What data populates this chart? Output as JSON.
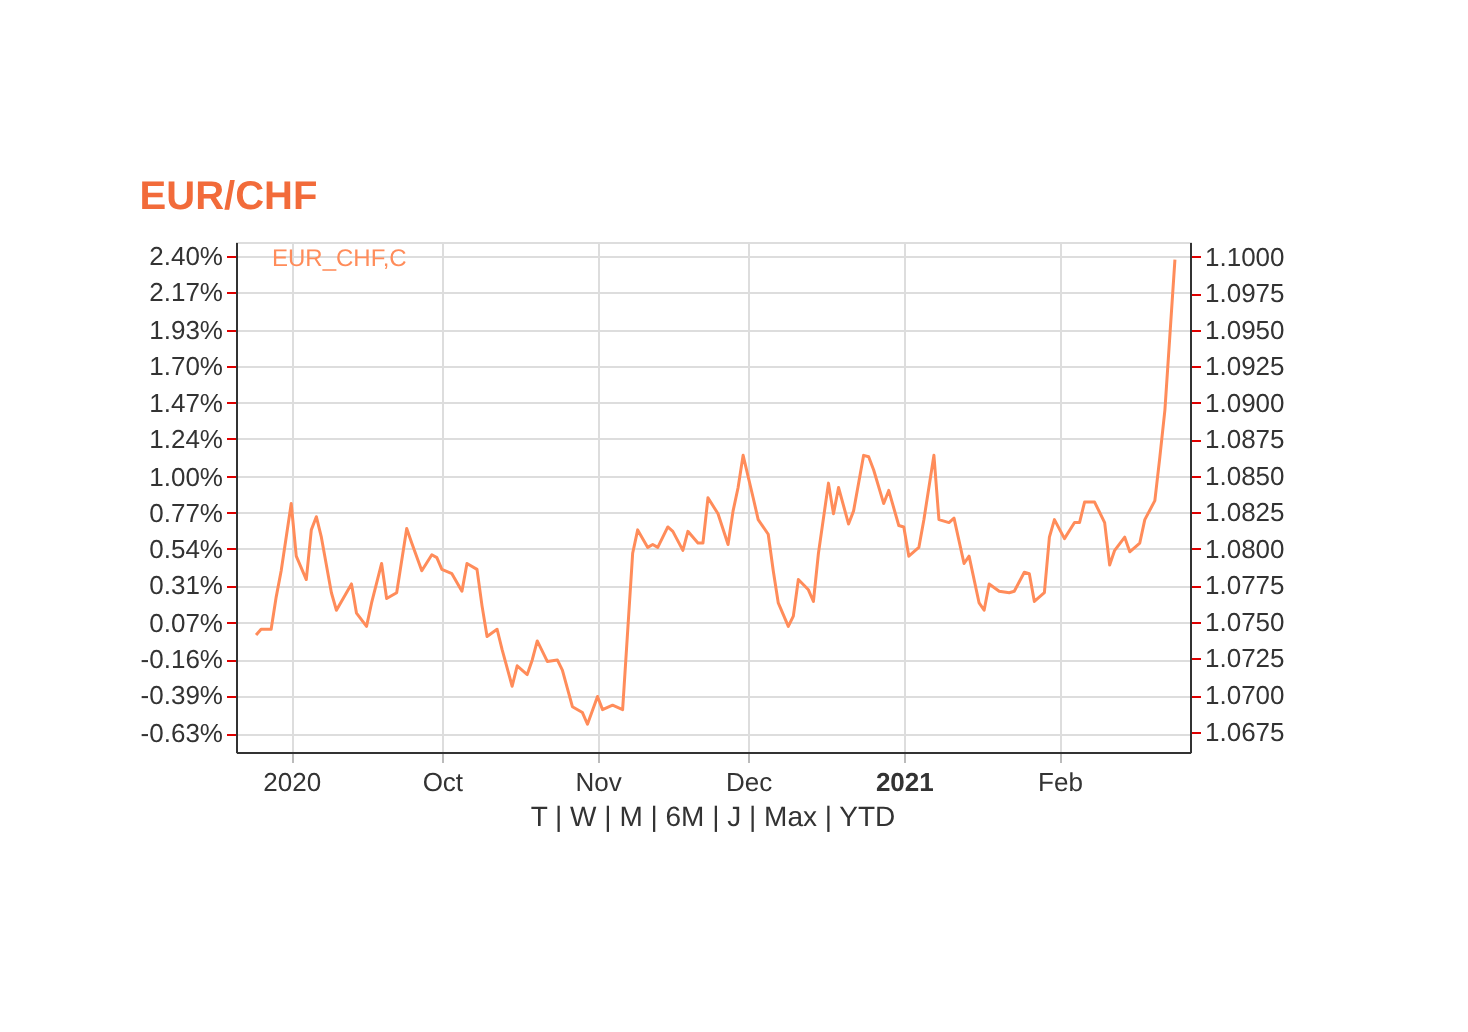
{
  "chart_data": {
    "type": "line",
    "title": "EUR/CHF",
    "legend": "top left",
    "grid": true,
    "annotations": [
      "T | W | M | 6M | J | Max | YTD"
    ],
    "x": [
      "2020-08-25",
      "2020-08-26",
      "2020-08-28",
      "2020-08-29",
      "2020-08-30",
      "2020-09-01",
      "2020-09-02",
      "2020-09-04",
      "2020-09-05",
      "2020-09-06",
      "2020-09-07",
      "2020-09-09",
      "2020-09-10",
      "2020-09-12",
      "2020-09-13",
      "2020-09-14",
      "2020-09-16",
      "2020-09-17",
      "2020-09-19",
      "2020-09-20",
      "2020-09-22",
      "2020-09-24",
      "2020-09-25",
      "2020-09-27",
      "2020-09-29",
      "2020-09-30",
      "2020-10-01",
      "2020-10-03",
      "2020-10-05",
      "2020-10-06",
      "2020-10-08",
      "2020-10-09",
      "2020-10-10",
      "2020-10-12",
      "2020-10-13",
      "2020-10-15",
      "2020-10-16",
      "2020-10-18",
      "2020-10-19",
      "2020-10-20",
      "2020-10-22",
      "2020-10-24",
      "2020-10-25",
      "2020-10-27",
      "2020-10-29",
      "2020-10-30",
      "2020-11-01",
      "2020-11-02",
      "2020-11-04",
      "2020-11-06",
      "2020-11-08",
      "2020-11-09",
      "2020-11-11",
      "2020-11-12",
      "2020-11-13",
      "2020-11-15",
      "2020-11-16",
      "2020-11-18",
      "2020-11-19",
      "2020-11-21",
      "2020-11-22",
      "2020-11-23",
      "2020-11-25",
      "2020-11-27",
      "2020-11-28",
      "2020-11-29",
      "2020-11-30",
      "2020-12-02",
      "2020-12-03",
      "2020-12-05",
      "2020-12-06",
      "2020-12-07",
      "2020-12-09",
      "2020-12-10",
      "2020-12-11",
      "2020-12-13",
      "2020-12-14",
      "2020-12-15",
      "2020-12-17",
      "2020-12-18",
      "2020-12-19",
      "2020-12-21",
      "2020-12-22",
      "2020-12-24",
      "2020-12-25",
      "2020-12-26",
      "2020-12-28",
      "2020-12-29",
      "2020-12-31",
      "2021-01-01",
      "2021-01-02",
      "2021-01-04",
      "2021-01-05",
      "2021-01-07",
      "2021-01-08",
      "2021-01-10",
      "2021-01-11",
      "2021-01-13",
      "2021-01-14",
      "2021-01-16",
      "2021-01-17",
      "2021-01-18",
      "2021-01-20",
      "2021-01-22",
      "2021-01-23",
      "2021-01-25",
      "2021-01-26",
      "2021-01-27",
      "2021-01-29",
      "2021-01-30",
      "2021-01-31",
      "2021-02-02",
      "2021-02-04",
      "2021-02-05",
      "2021-02-06",
      "2021-02-08",
      "2021-02-10",
      "2021-02-11",
      "2021-02-12",
      "2021-02-14",
      "2021-02-15",
      "2021-02-17",
      "2021-02-18",
      "2021-02-20",
      "2021-02-21",
      "2021-02-22",
      "2021-02-24"
    ],
    "series": [
      {
        "name": "EUR_CHF,C",
        "color": "#ff8c5a",
        "axis": "y2",
        "values": [
          1.0741,
          1.0745,
          1.0745,
          1.0767,
          1.0785,
          1.0831,
          1.0795,
          1.0779,
          1.0813,
          1.0822,
          1.0808,
          1.077,
          1.0758,
          1.077,
          1.0776,
          1.0756,
          1.0747,
          1.0763,
          1.079,
          1.0766,
          1.077,
          1.0814,
          1.0804,
          1.0785,
          1.0796,
          1.0794,
          1.0786,
          1.0783,
          1.0771,
          1.079,
          1.0786,
          1.0761,
          1.074,
          1.0745,
          1.0731,
          1.0706,
          1.072,
          1.0714,
          1.0724,
          1.0737,
          1.0723,
          1.0724,
          1.0717,
          1.0692,
          1.0688,
          1.068,
          1.0699,
          1.069,
          1.0693,
          1.069,
          1.0797,
          1.0813,
          1.0801,
          1.0803,
          1.0801,
          1.0815,
          1.0812,
          1.0799,
          1.0812,
          1.0804,
          1.0804,
          1.0835,
          1.0824,
          1.0803,
          1.0826,
          1.0842,
          1.0864,
          1.0835,
          1.082,
          1.081,
          1.0785,
          1.0763,
          1.0747,
          1.0754,
          1.0779,
          1.0772,
          1.0764,
          1.0797,
          1.0845,
          1.0824,
          1.0842,
          1.0817,
          1.0826,
          1.0864,
          1.0863,
          1.0854,
          1.0831,
          1.084,
          1.0816,
          1.0815,
          1.0795,
          1.0801,
          1.082,
          1.0864,
          1.082,
          1.0818,
          1.0821,
          1.079,
          1.0795,
          1.0763,
          1.0758,
          1.0776,
          1.0771,
          1.077,
          1.0771,
          1.0784,
          1.0783,
          1.0764,
          1.077,
          1.0808,
          1.082,
          1.0807,
          1.0818,
          1.0818,
          1.0832,
          1.0832,
          1.0818,
          1.0789,
          1.0799,
          1.0808,
          1.0798,
          1.0804,
          1.082,
          1.0833,
          1.0863,
          1.0895,
          1.0998
        ]
      }
    ],
    "xlim": [
      "2020-08-21",
      "2021-02-27"
    ],
    "xticks": [
      {
        "value": "2020-09-01",
        "label": "2020"
      },
      {
        "value": "2020-10-01",
        "label": "Oct"
      },
      {
        "value": "2020-11-01",
        "label": "Nov"
      },
      {
        "value": "2020-12-01",
        "label": "Dec"
      },
      {
        "value": "2021-01-01",
        "label": "2021"
      },
      {
        "value": "2021-02-01",
        "label": "Feb"
      }
    ],
    "ylim": [
      -0.75,
      2.49
    ],
    "yticks": [
      {
        "value": 2.4,
        "label": "2.40%"
      },
      {
        "value": 2.17,
        "label": "2.17%"
      },
      {
        "value": 1.93,
        "label": "1.93%"
      },
      {
        "value": 1.7,
        "label": "1.70%"
      },
      {
        "value": 1.47,
        "label": "1.47%"
      },
      {
        "value": 1.24,
        "label": "1.24%"
      },
      {
        "value": 1.0,
        "label": "1.00%"
      },
      {
        "value": 0.77,
        "label": "0.77%"
      },
      {
        "value": 0.54,
        "label": "0.54%"
      },
      {
        "value": 0.31,
        "label": "0.31%"
      },
      {
        "value": 0.07,
        "label": "0.07%"
      },
      {
        "value": -0.16,
        "label": "-0.16%"
      },
      {
        "value": -0.39,
        "label": "-0.39%"
      },
      {
        "value": -0.63,
        "label": "-0.63%"
      }
    ],
    "y2lim": [
      1.0661,
      1.101
    ],
    "y2ticks": [
      {
        "value": 1.1,
        "label": "1.1000"
      },
      {
        "value": 1.0975,
        "label": "1.0975"
      },
      {
        "value": 1.095,
        "label": "1.0950"
      },
      {
        "value": 1.0925,
        "label": "1.0925"
      },
      {
        "value": 1.09,
        "label": "1.0900"
      },
      {
        "value": 1.0875,
        "label": "1.0875"
      },
      {
        "value": 1.085,
        "label": "1.0850"
      },
      {
        "value": 1.0825,
        "label": "1.0825"
      },
      {
        "value": 1.08,
        "label": "1.0800"
      },
      {
        "value": 1.0775,
        "label": "1.0775"
      },
      {
        "value": 1.075,
        "label": "1.0750"
      },
      {
        "value": 1.0725,
        "label": "1.0725"
      },
      {
        "value": 1.07,
        "label": "1.0700"
      },
      {
        "value": 1.0675,
        "label": "1.0675"
      }
    ]
  }
}
